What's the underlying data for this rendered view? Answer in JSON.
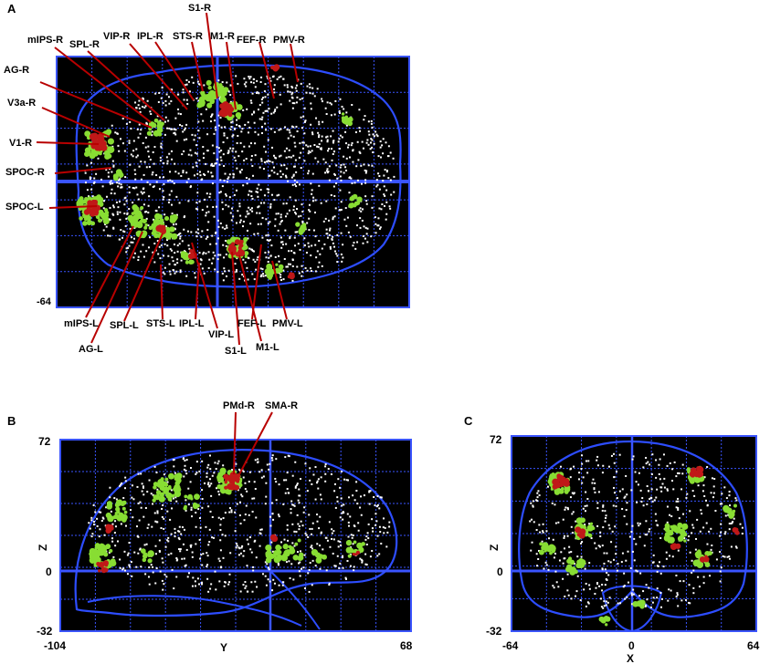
{
  "panels": {
    "a": {
      "letter": "A",
      "tick_min": "-64",
      "labels_top": [
        "S1-R",
        "mIPS-R",
        "SPL-R",
        "VIP-R",
        "IPL-R",
        "STS-R",
        "M1-R",
        "FEF-R",
        "PMV-R",
        "AG-R",
        "V3a-R",
        "V1-R",
        "SPOC-R",
        "SPOC-L"
      ],
      "labels_bottom": [
        "mIPS-L",
        "SPL-L",
        "STS-L",
        "IPL-L",
        "VIP-L",
        "FEF-L",
        "PMV-L",
        "S1-L",
        "M1-L",
        "AG-L"
      ]
    },
    "b": {
      "letter": "B",
      "labels": [
        "PMd-R",
        "SMA-R"
      ],
      "z_top": "72",
      "z_zero": "0",
      "z_bottom": "-32",
      "axis_z": "Z",
      "x_left": "-104",
      "axis_y": "Y",
      "x_right": "68"
    },
    "c": {
      "letter": "C",
      "z_top": "72",
      "z_zero": "0",
      "z_bottom": "-32",
      "axis_z": "Z",
      "x_left": "-64",
      "x_mid": "0",
      "axis_x": "X",
      "x_right": "64"
    }
  },
  "colors": {
    "background": "#000000",
    "grid": "#3a54ff",
    "outline": "#2d4dff",
    "pointer": "#b80000",
    "cluster_red": "#c01818",
    "cluster_green": "#88dd33",
    "dots": "#ffffff"
  }
}
